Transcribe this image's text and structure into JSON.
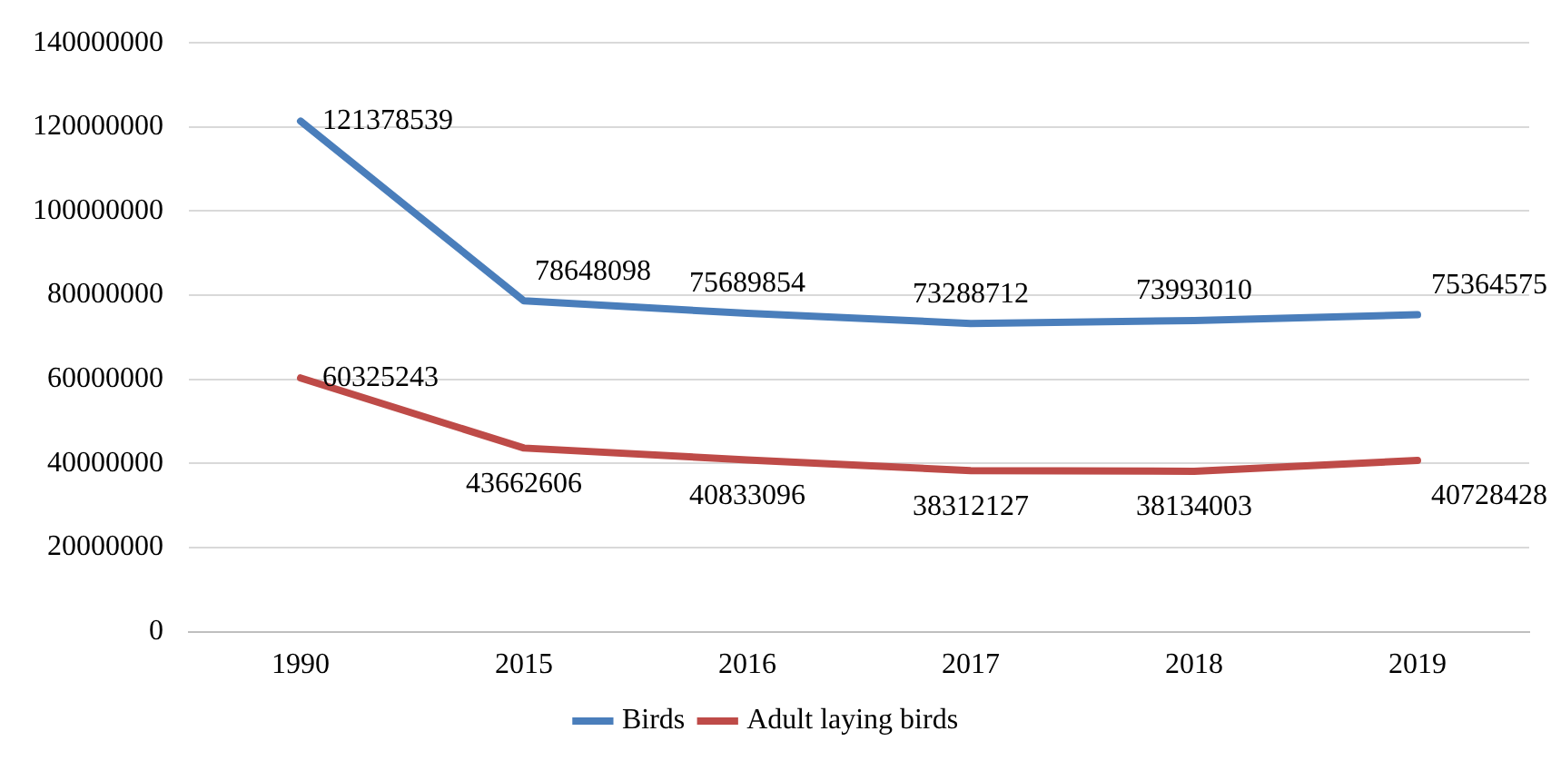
{
  "chart_data": {
    "type": "line",
    "categories": [
      "1990",
      "2015",
      "2016",
      "2017",
      "2018",
      "2019"
    ],
    "series": [
      {
        "name": "Birds",
        "color": "#4a7ebb",
        "values": [
          121378539,
          78648098,
          75689854,
          73288712,
          73993010,
          75364575
        ]
      },
      {
        "name": "Adult laying birds",
        "color": "#be4b48",
        "values": [
          60325243,
          43662606,
          40833096,
          38312127,
          38134003,
          40728428
        ]
      }
    ],
    "ylim": [
      0,
      140000000
    ],
    "yticks": [
      0,
      20000000,
      40000000,
      60000000,
      80000000,
      100000000,
      120000000,
      140000000
    ],
    "grid": "y",
    "legend": "bottom",
    "data_labels": true,
    "marker": "none",
    "line_style": "solid"
  }
}
